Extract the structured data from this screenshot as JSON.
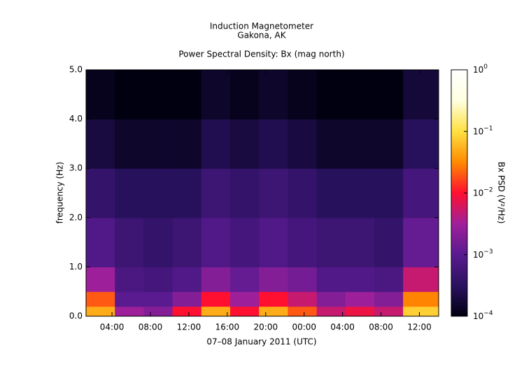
{
  "chart_data": {
    "type": "spectrogram",
    "title": "Induction Magnetometer",
    "subtitle": "Gakona, AK",
    "plot_title": "Power Spectral Density: Bx (mag north)",
    "xlabel": "07–08 January 2011 (UTC)",
    "ylabel": "frequency (Hz)",
    "colorbar_label": "Bx PSD (V²/Hz)",
    "xlim": [
      1.3,
      38.0
    ],
    "xticks": [
      {
        "value": 4,
        "label": "04:00"
      },
      {
        "value": 8,
        "label": "08:00"
      },
      {
        "value": 12,
        "label": "12:00"
      },
      {
        "value": 16,
        "label": "16:00"
      },
      {
        "value": 20,
        "label": "20:00"
      },
      {
        "value": 24,
        "label": "00:00"
      },
      {
        "value": 28,
        "label": "04:00"
      },
      {
        "value": 32,
        "label": "08:00"
      },
      {
        "value": 36,
        "label": "12:00"
      }
    ],
    "ylim": [
      0,
      5
    ],
    "yticks": [
      {
        "value": 0,
        "label": "0.0"
      },
      {
        "value": 1,
        "label": "1.0"
      },
      {
        "value": 2,
        "label": "2.0"
      },
      {
        "value": 3,
        "label": "3.0"
      },
      {
        "value": 4,
        "label": "4.0"
      },
      {
        "value": 5,
        "label": "5.0"
      }
    ],
    "clim": [
      0.0001,
      1
    ],
    "clog": true,
    "cticks": [
      {
        "value": 0.0001,
        "label": "10",
        "exponent": "−4"
      },
      {
        "value": 0.001,
        "label": "10",
        "exponent": "−3"
      },
      {
        "value": 0.01,
        "label": "10",
        "exponent": "−2"
      },
      {
        "value": 0.1,
        "label": "10",
        "exponent": "−1"
      },
      {
        "value": 1,
        "label": "10",
        "exponent": "0"
      }
    ],
    "colormap": [
      "#000010",
      "#2a1260",
      "#5a1a90",
      "#a0209a",
      "#ff1030",
      "#ff8a00",
      "#ffe040",
      "#ffffe0",
      "#ffffff"
    ],
    "time_edges": [
      1.3,
      4.3,
      7.3,
      10.3,
      13.3,
      16.3,
      19.3,
      22.3,
      25.3,
      28.3,
      31.3,
      34.3,
      38.0
    ],
    "freq_edges": [
      0,
      0.2,
      0.5,
      1,
      2,
      3,
      4,
      5
    ],
    "z": [
      [
        0.05,
        0.003,
        0.002,
        0.01,
        0.05,
        0.01,
        0.05,
        0.02,
        0.005,
        0.008,
        0.005,
        0.08
      ],
      [
        0.02,
        0.001,
        0.001,
        0.002,
        0.01,
        0.003,
        0.01,
        0.005,
        0.002,
        0.003,
        0.002,
        0.03
      ],
      [
        0.003,
        0.0007,
        0.0006,
        0.0008,
        0.002,
        0.0012,
        0.002,
        0.0015,
        0.0008,
        0.0008,
        0.0007,
        0.005
      ],
      [
        0.0008,
        0.0005,
        0.0004,
        0.0005,
        0.0008,
        0.0006,
        0.0008,
        0.0006,
        0.0005,
        0.0005,
        0.0004,
        0.0012
      ],
      [
        0.0004,
        0.0003,
        0.0003,
        0.0003,
        0.0005,
        0.0004,
        0.0005,
        0.0004,
        0.0003,
        0.0003,
        0.0003,
        0.0006
      ],
      [
        0.0002,
        0.00015,
        0.00015,
        0.00015,
        0.00025,
        0.0002,
        0.00025,
        0.0002,
        0.00015,
        0.00015,
        0.00015,
        0.0003
      ],
      [
        0.00012,
        0.0001,
        0.0001,
        0.0001,
        0.00015,
        0.00012,
        0.00015,
        0.00012,
        0.0001,
        0.0001,
        0.0001,
        0.00018
      ]
    ]
  }
}
